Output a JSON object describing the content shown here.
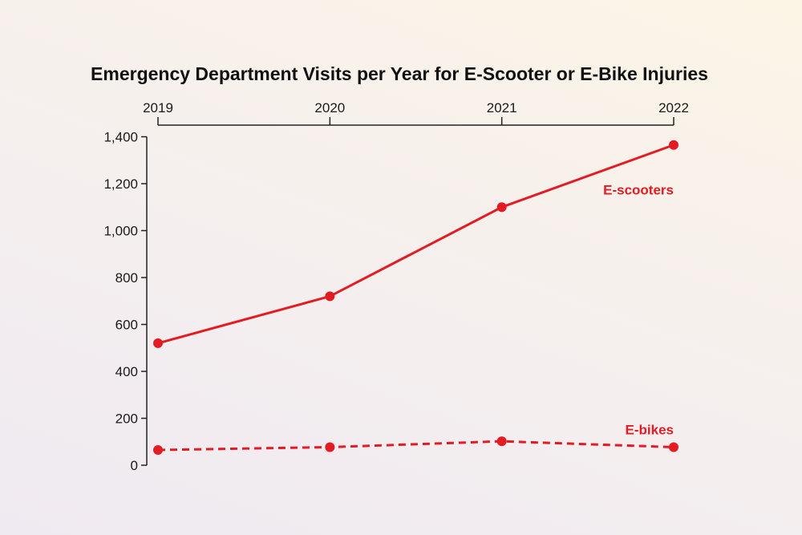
{
  "chart_data": {
    "type": "line",
    "title": "Emergency Department Visits per Year for E-Scooter or E-Bike Injuries",
    "xlabel": "",
    "ylabel": "",
    "x": [
      "2019",
      "2020",
      "2021",
      "2022"
    ],
    "x_axis_position": "top",
    "ylim": [
      0,
      1400
    ],
    "yticks": [
      0,
      200,
      400,
      600,
      800,
      1000,
      1200,
      1400
    ],
    "ytick_labels": [
      "0",
      "200",
      "400",
      "600",
      "800",
      "1,000",
      "1,200",
      "1,400"
    ],
    "grid": false,
    "legend": "direct labels at right",
    "series": [
      {
        "name": "E-scooters",
        "values": [
          520,
          720,
          1100,
          1365
        ],
        "color": "#e31b23",
        "style": "solid"
      },
      {
        "name": "E-bikes",
        "values": [
          65,
          77,
          102,
          77
        ],
        "color": "#e31b23",
        "style": "dashed"
      }
    ]
  }
}
